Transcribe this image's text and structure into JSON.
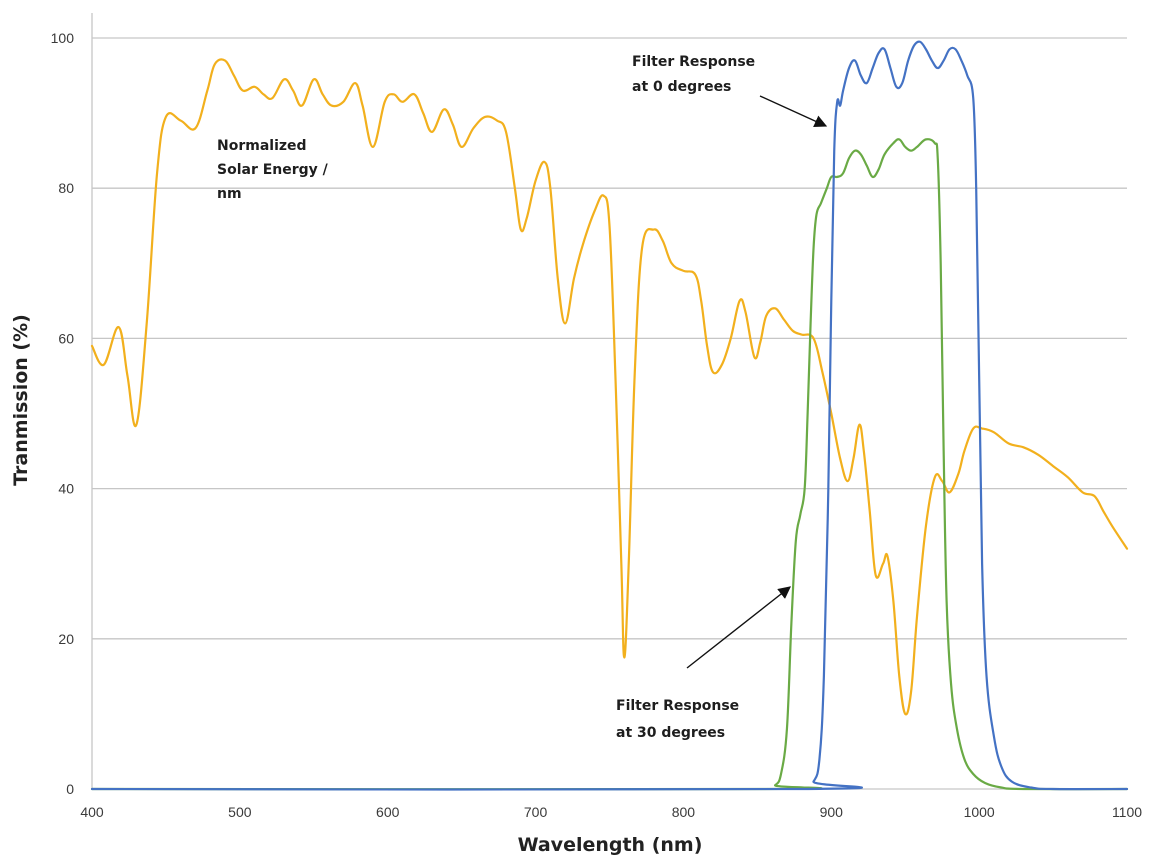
{
  "chart_data": {
    "type": "line",
    "title": "",
    "xlabel": "Wavelength (nm)",
    "ylabel": "Tranmission  (%)",
    "xlim": [
      400,
      1100
    ],
    "ylim": [
      0,
      100
    ],
    "xticks": [
      400,
      500,
      600,
      700,
      800,
      900,
      1000,
      1100
    ],
    "yticks": [
      0,
      20,
      40,
      60,
      80,
      100
    ],
    "grid": "horizontal",
    "legend": "none",
    "series": [
      {
        "key": "solar",
        "color": "#f2b01d",
        "points": [
          [
            400,
            59
          ],
          [
            408,
            56.5
          ],
          [
            418,
            61.5
          ],
          [
            424,
            55
          ],
          [
            430,
            48.5
          ],
          [
            437,
            62
          ],
          [
            444,
            82
          ],
          [
            450,
            89.5
          ],
          [
            460,
            89
          ],
          [
            470,
            88
          ],
          [
            478,
            93
          ],
          [
            483,
            96.5
          ],
          [
            490,
            97
          ],
          [
            496,
            95
          ],
          [
            502,
            93
          ],
          [
            510,
            93.5
          ],
          [
            516,
            92.5
          ],
          [
            522,
            92
          ],
          [
            530,
            94.5
          ],
          [
            536,
            93
          ],
          [
            542,
            91
          ],
          [
            550,
            94.5
          ],
          [
            556,
            92.5
          ],
          [
            562,
            91
          ],
          [
            570,
            91.5
          ],
          [
            578,
            94
          ],
          [
            583,
            91
          ],
          [
            590,
            85.5
          ],
          [
            598,
            91.5
          ],
          [
            604,
            92.5
          ],
          [
            610,
            91.5
          ],
          [
            618,
            92.5
          ],
          [
            624,
            90
          ],
          [
            630,
            87.5
          ],
          [
            638,
            90.5
          ],
          [
            644,
            88.5
          ],
          [
            650,
            85.5
          ],
          [
            658,
            88
          ],
          [
            666,
            89.5
          ],
          [
            674,
            89
          ],
          [
            680,
            87.5
          ],
          [
            686,
            80
          ],
          [
            690,
            74.5
          ],
          [
            694,
            76
          ],
          [
            700,
            81
          ],
          [
            706,
            83.5
          ],
          [
            710,
            80
          ],
          [
            715,
            68
          ],
          [
            720,
            62
          ],
          [
            726,
            68
          ],
          [
            732,
            72.5
          ],
          [
            740,
            77
          ],
          [
            746,
            79
          ],
          [
            750,
            75
          ],
          [
            754,
            55
          ],
          [
            758,
            30
          ],
          [
            760,
            17.5
          ],
          [
            763,
            30
          ],
          [
            767,
            55
          ],
          [
            772,
            72
          ],
          [
            780,
            74.5
          ],
          [
            786,
            73
          ],
          [
            792,
            70
          ],
          [
            800,
            69
          ],
          [
            808,
            68.5
          ],
          [
            812,
            65
          ],
          [
            816,
            59
          ],
          [
            820,
            55.5
          ],
          [
            826,
            56.5
          ],
          [
            832,
            60
          ],
          [
            838,
            65
          ],
          [
            842,
            63.5
          ],
          [
            848,
            57.5
          ],
          [
            852,
            59.5
          ],
          [
            856,
            63
          ],
          [
            862,
            64
          ],
          [
            868,
            62.5
          ],
          [
            874,
            61
          ],
          [
            880,
            60.5
          ],
          [
            888,
            60
          ],
          [
            894,
            55.5
          ],
          [
            900,
            50
          ],
          [
            906,
            44
          ],
          [
            911,
            41
          ],
          [
            915,
            44
          ],
          [
            919,
            48.5
          ],
          [
            922,
            45
          ],
          [
            926,
            37
          ],
          [
            930,
            28.5
          ],
          [
            935,
            30
          ],
          [
            938,
            31
          ],
          [
            942,
            25
          ],
          [
            946,
            15
          ],
          [
            950,
            10
          ],
          [
            954,
            13
          ],
          [
            958,
            23
          ],
          [
            964,
            35
          ],
          [
            970,
            41.5
          ],
          [
            975,
            41
          ],
          [
            980,
            39.5
          ],
          [
            986,
            42
          ],
          [
            990,
            45
          ],
          [
            996,
            48
          ],
          [
            1002,
            48
          ],
          [
            1010,
            47.5
          ],
          [
            1020,
            46
          ],
          [
            1030,
            45.5
          ],
          [
            1040,
            44.5
          ],
          [
            1050,
            43
          ],
          [
            1060,
            41.5
          ],
          [
            1070,
            39.5
          ],
          [
            1078,
            39
          ],
          [
            1084,
            37
          ],
          [
            1090,
            35
          ],
          [
            1100,
            32
          ]
        ]
      },
      {
        "key": "filter30",
        "color": "#6aaa45",
        "points": [
          [
            400,
            0
          ],
          [
            855,
            0
          ],
          [
            862,
            0.5
          ],
          [
            866,
            2
          ],
          [
            870,
            8
          ],
          [
            873,
            22
          ],
          [
            876,
            33
          ],
          [
            879,
            36.5
          ],
          [
            882,
            40
          ],
          [
            884,
            50
          ],
          [
            886,
            62
          ],
          [
            888,
            72
          ],
          [
            890,
            76.5
          ],
          [
            893,
            78
          ],
          [
            897,
            80
          ],
          [
            900,
            81.5
          ],
          [
            904,
            81.5
          ],
          [
            908,
            82
          ],
          [
            912,
            84
          ],
          [
            916,
            85
          ],
          [
            920,
            84.5
          ],
          [
            924,
            83
          ],
          [
            928,
            81.5
          ],
          [
            932,
            82.5
          ],
          [
            936,
            84.5
          ],
          [
            942,
            86
          ],
          [
            946,
            86.5
          ],
          [
            950,
            85.5
          ],
          [
            954,
            85
          ],
          [
            958,
            85.5
          ],
          [
            964,
            86.5
          ],
          [
            970,
            86
          ],
          [
            972,
            84
          ],
          [
            974,
            70
          ],
          [
            976,
            45
          ],
          [
            978,
            25
          ],
          [
            981,
            14
          ],
          [
            985,
            8
          ],
          [
            990,
            4
          ],
          [
            996,
            2
          ],
          [
            1004,
            0.8
          ],
          [
            1015,
            0.2
          ],
          [
            1030,
            0
          ],
          [
            1100,
            0
          ]
        ]
      },
      {
        "key": "filter0",
        "color": "#4472c4",
        "points": [
          [
            400,
            0
          ],
          [
            880,
            0
          ],
          [
            888,
            1
          ],
          [
            892,
            4
          ],
          [
            895,
            15
          ],
          [
            898,
            40
          ],
          [
            900,
            65
          ],
          [
            902,
            85
          ],
          [
            904,
            91.5
          ],
          [
            906,
            91
          ],
          [
            908,
            93
          ],
          [
            912,
            96
          ],
          [
            916,
            97
          ],
          [
            920,
            95
          ],
          [
            924,
            94
          ],
          [
            928,
            96
          ],
          [
            932,
            98
          ],
          [
            936,
            98.5
          ],
          [
            940,
            96
          ],
          [
            944,
            93.5
          ],
          [
            948,
            94
          ],
          [
            952,
            97
          ],
          [
            956,
            99
          ],
          [
            960,
            99.5
          ],
          [
            964,
            98.5
          ],
          [
            968,
            97
          ],
          [
            972,
            96
          ],
          [
            976,
            97
          ],
          [
            980,
            98.5
          ],
          [
            984,
            98.5
          ],
          [
            988,
            97
          ],
          [
            992,
            95
          ],
          [
            996,
            92
          ],
          [
            998,
            80
          ],
          [
            1000,
            55
          ],
          [
            1002,
            30
          ],
          [
            1005,
            15
          ],
          [
            1010,
            7
          ],
          [
            1015,
            3
          ],
          [
            1022,
            1
          ],
          [
            1035,
            0.2
          ],
          [
            1050,
            0
          ],
          [
            1100,
            0
          ]
        ]
      }
    ],
    "annotations": [
      {
        "lines": [
          "Normalized",
          "Solar Energy /",
          "nm"
        ]
      },
      {
        "lines": [
          "Filter Response",
          "at 0 degrees"
        ]
      },
      {
        "lines": [
          "Filter Response",
          "at 30 degrees"
        ]
      }
    ]
  }
}
